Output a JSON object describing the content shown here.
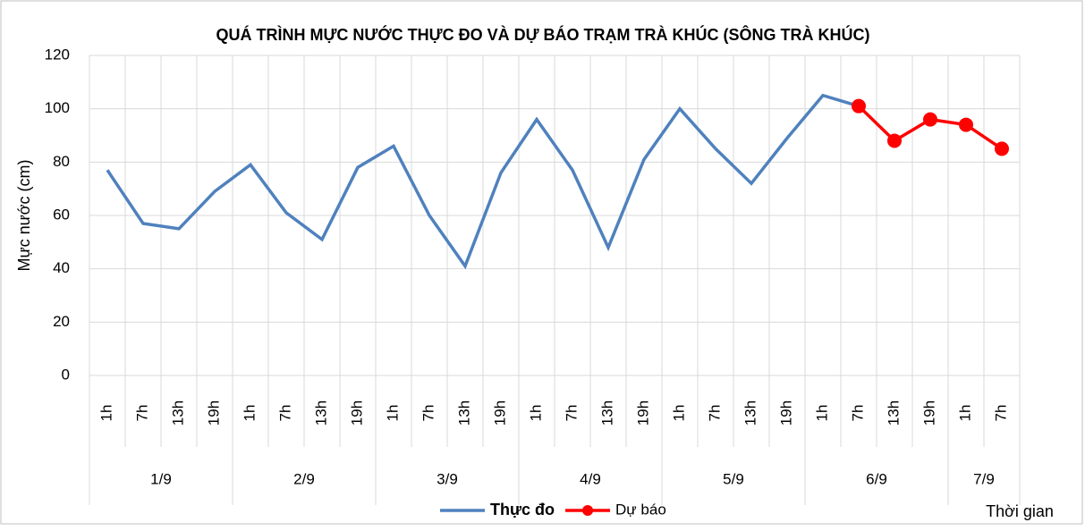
{
  "chart_data": {
    "type": "line",
    "title": "QUÁ TRÌNH MỰC NƯỚC THỰC ĐO VÀ DỰ BÁO TRẠM TRÀ KHÚC (SÔNG TRÀ KHÚC)",
    "y_label": "Mực nước (cm)",
    "x_label": "Thời gian",
    "categories": [
      "1h",
      "7h",
      "13h",
      "19h",
      "1h",
      "7h",
      "13h",
      "19h",
      "1h",
      "7h",
      "13h",
      "19h",
      "1h",
      "7h",
      "13h",
      "19h",
      "1h",
      "7h",
      "13h",
      "19h",
      "1h",
      "7h",
      "13h",
      "19h",
      "1h",
      "7h"
    ],
    "groups": [
      "1/9",
      "2/9",
      "3/9",
      "4/9",
      "5/9",
      "6/9",
      "7/9"
    ],
    "series": [
      {
        "name": "Thực đo",
        "color": "#4f81bd",
        "markers": false,
        "values": [
          77,
          57,
          55,
          69,
          79,
          61,
          51,
          78,
          86,
          60,
          41,
          76,
          96,
          77,
          48,
          81,
          100,
          85,
          72,
          89,
          105,
          101,
          null,
          null,
          null,
          null
        ]
      },
      {
        "name": "Dự báo",
        "color": "#ff0000",
        "markers": true,
        "values": [
          null,
          null,
          null,
          null,
          null,
          null,
          null,
          null,
          null,
          null,
          null,
          null,
          null,
          null,
          null,
          null,
          null,
          null,
          null,
          null,
          null,
          101,
          88,
          96,
          94,
          85
        ]
      }
    ],
    "ylim": [
      0,
      120
    ],
    "yticks": [
      0,
      20,
      40,
      60,
      80,
      100,
      120
    ],
    "grid": true
  }
}
